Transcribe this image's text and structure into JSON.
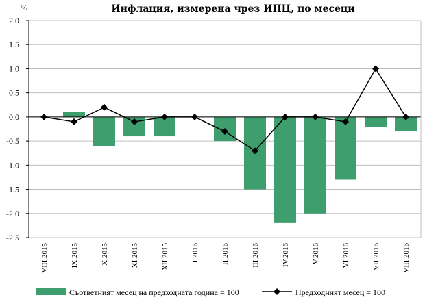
{
  "chart_data": {
    "type": "bar+line",
    "title": "Инфлация, измерена чрез ИПЦ, по месеци",
    "unit_label": "%",
    "categories": [
      "VIII.2015",
      "IX.2015",
      "X.2015",
      "XI.2015",
      "XII.2015",
      "I.2016",
      "II.2016",
      "III.2016",
      "IV.2016",
      "V.2016",
      "VI.2016",
      "VII.2016",
      "VIII.2016"
    ],
    "ylim": [
      -2.5,
      2.0
    ],
    "yticks": [
      "2.0",
      "1.5",
      "1.0",
      "0.5",
      "0.0",
      "-0.5",
      "-1.0",
      "-1.5",
      "-2.0",
      "-2.5"
    ],
    "grid": true,
    "legend_position": "bottom",
    "series": [
      {
        "name": "Съответният месец на предходната година = 100",
        "kind": "bar",
        "color": "#3e9e6e",
        "values": [
          0.0,
          0.1,
          -0.6,
          -0.4,
          -0.4,
          0.0,
          -0.5,
          -1.5,
          -2.2,
          -2.0,
          -1.3,
          -0.2,
          -0.3
        ]
      },
      {
        "name": "Предходният месец = 100",
        "kind": "line",
        "color": "#000000",
        "values": [
          0.0,
          -0.1,
          0.2,
          -0.1,
          0.0,
          0.0,
          -0.3,
          -0.7,
          0.0,
          0.0,
          -0.1,
          1.0,
          0.0
        ]
      }
    ]
  }
}
